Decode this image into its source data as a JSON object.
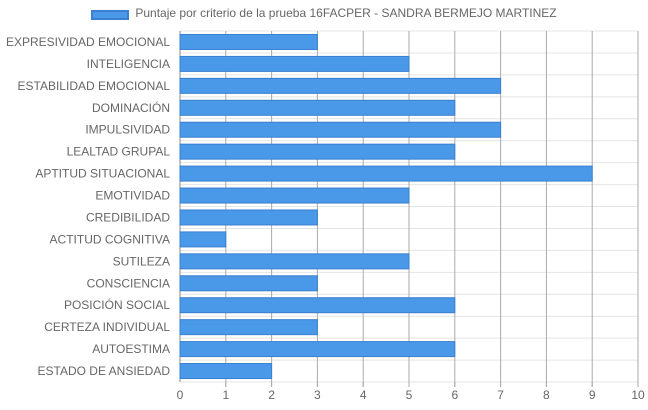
{
  "chart_data": {
    "type": "bar",
    "orientation": "horizontal",
    "categories": [
      "EXPRESIVIDAD EMOCIONAL",
      "INTELIGENCIA",
      "ESTABILIDAD EMOCIONAL",
      "DOMINACIÓN",
      "IMPULSIVIDAD",
      "LEALTAD GRUPAL",
      "APTITUD SITUACIONAL",
      "EMOTIVIDAD",
      "CREDIBILIDAD",
      "ACTITUD COGNITIVA",
      "SUTILEZA",
      "CONSCIENCIA",
      "POSICIÓN SOCIAL",
      "CERTEZA INDIVIDUAL",
      "AUTOESTIMA",
      "ESTADO DE ANSIEDAD"
    ],
    "series": [
      {
        "name": "Puntaje por criterio de la prueba 16FACPER - SANDRA BERMEJO MARTINEZ",
        "values": [
          3,
          5,
          7,
          6,
          7,
          6,
          9,
          5,
          3,
          1,
          5,
          3,
          6,
          3,
          6,
          2
        ]
      }
    ],
    "xlim": [
      0,
      10
    ],
    "x_ticks": [
      "0",
      "1",
      "2",
      "3",
      "4",
      "5",
      "6",
      "7",
      "8",
      "9",
      "10"
    ],
    "grid": true,
    "legend_position": "top",
    "colors": {
      "bar_fill": "#4a98e8",
      "bar_border": "#3a7fd0",
      "grid": "#e4e4e4",
      "axis": "#888888",
      "label": "#666666"
    }
  }
}
